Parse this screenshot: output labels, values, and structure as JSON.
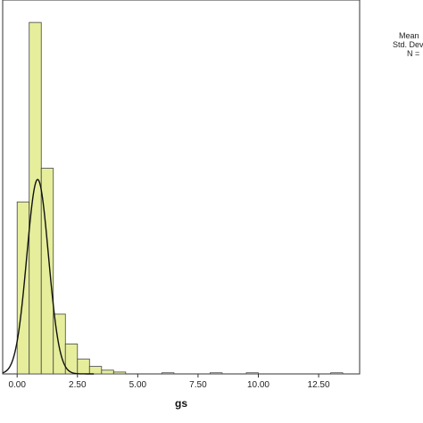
{
  "chart_data": {
    "type": "bar",
    "xlabel": "gs",
    "ylabel": "",
    "xlim": [
      -0.6,
      14.2
    ],
    "ylim": [
      0,
      100
    ],
    "x_ticks": [
      0,
      2.5,
      5,
      7.5,
      10,
      12.5
    ],
    "x_tick_labels": [
      "0.00",
      "2.50",
      "5.00",
      "7.50",
      "10.00",
      "12.50"
    ],
    "bin_width": 0.5,
    "bins": [
      {
        "start": 0.0,
        "count": 46
      },
      {
        "start": 0.5,
        "count": 94
      },
      {
        "start": 1.0,
        "count": 55
      },
      {
        "start": 1.5,
        "count": 16
      },
      {
        "start": 2.0,
        "count": 8
      },
      {
        "start": 2.5,
        "count": 4
      },
      {
        "start": 3.0,
        "count": 2
      },
      {
        "start": 3.5,
        "count": 1
      },
      {
        "start": 4.0,
        "count": 0.5
      },
      {
        "start": 6.0,
        "count": 0.3
      },
      {
        "start": 8.0,
        "count": 0.3
      },
      {
        "start": 9.5,
        "count": 0.3
      },
      {
        "start": 13.0,
        "count": 0.3
      }
    ],
    "normal_curve": {
      "mean": 0.85,
      "sd": 0.45,
      "peak": 52
    },
    "bar_color": "#e6ee9c",
    "bar_stroke": "#444444",
    "curve_color": "#111111"
  },
  "stats": {
    "mean_label": "Mean",
    "sd_label": "Std. Dev",
    "n_label": "N ="
  }
}
